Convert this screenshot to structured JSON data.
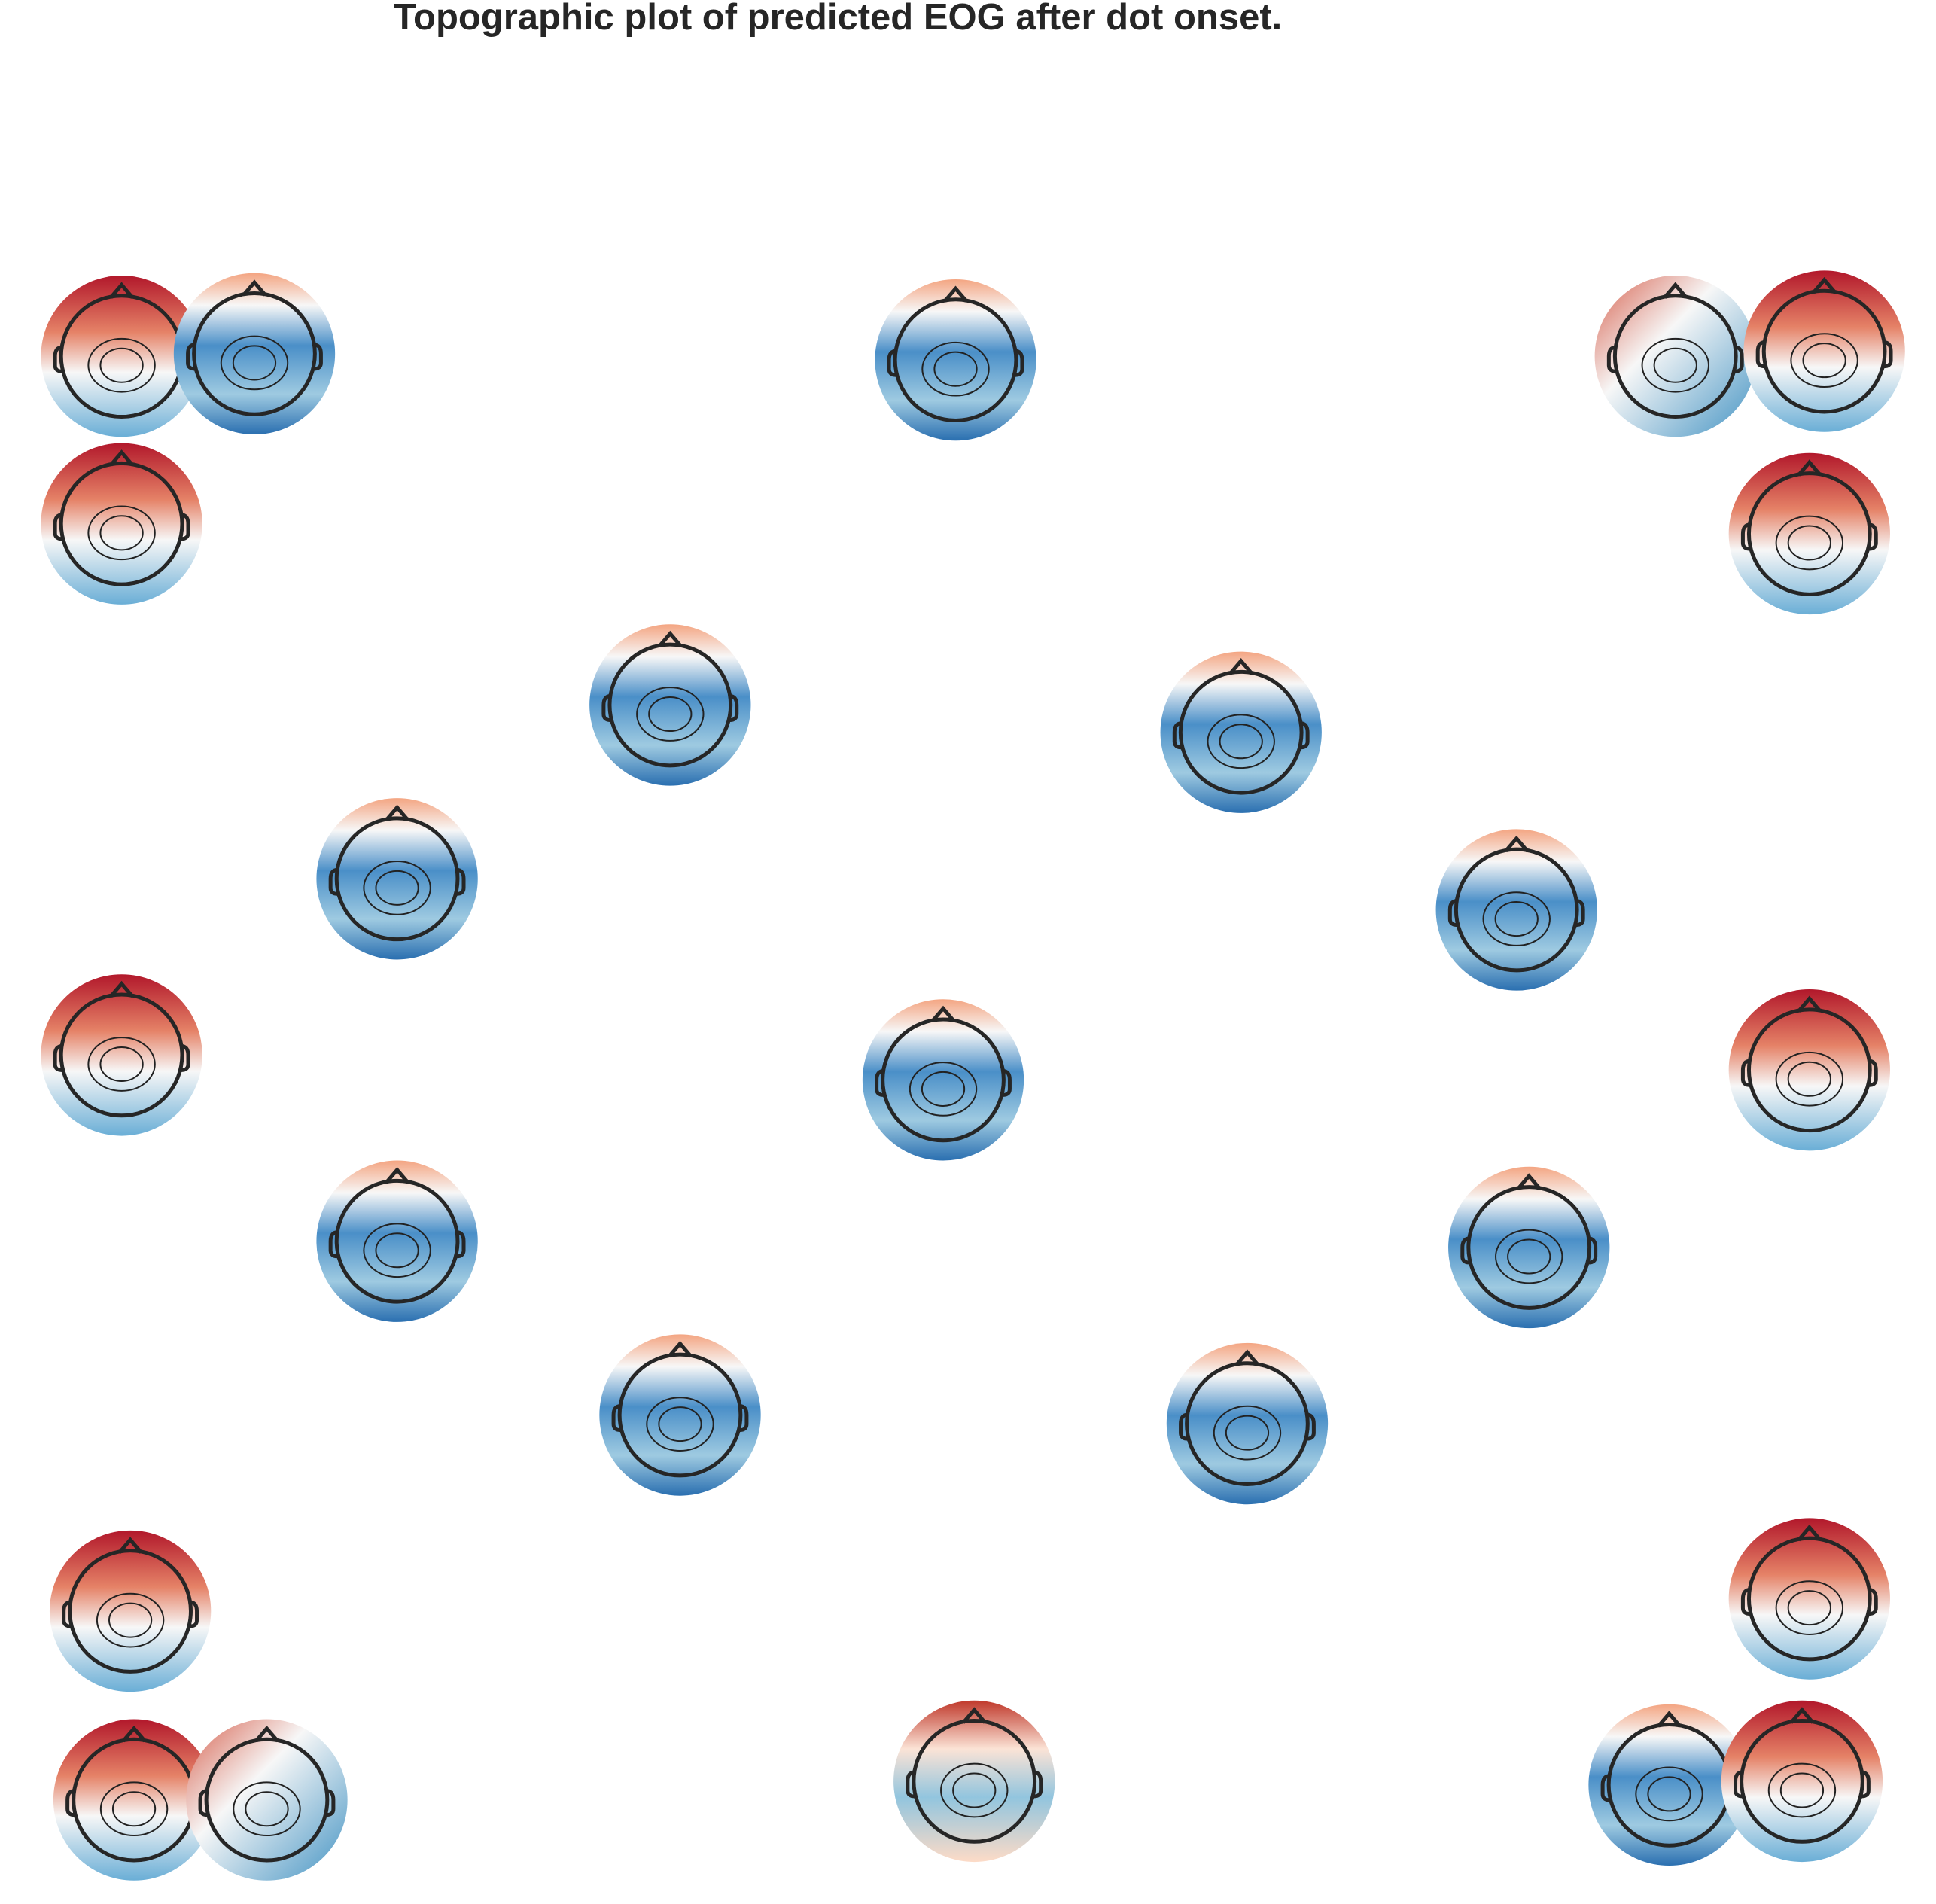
{
  "chart_data": {
    "type": "topomap",
    "title": "Topographic plot of predicted EOG after dot onset."
  }
}
